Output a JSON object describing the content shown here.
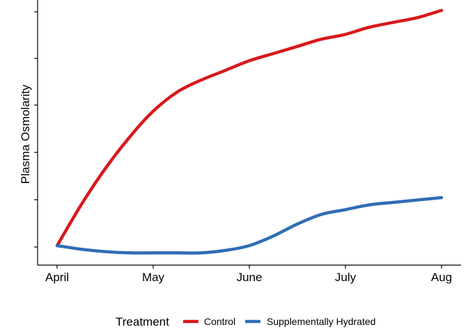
{
  "chart_data": {
    "type": "line",
    "title": "",
    "xlabel": "",
    "ylabel": "Plasma Osmolarity",
    "categories": [
      "April",
      "May",
      "June",
      "July",
      "Aug"
    ],
    "y_tick_count": 6,
    "y_tick_labels_shown": false,
    "ylim": [
      0,
      1.1
    ],
    "grid": false,
    "legend": {
      "title": "Treatment",
      "position": "bottom",
      "entries": [
        "Control",
        "Supplementally Hydrated"
      ]
    },
    "series": [
      {
        "name": "Control",
        "color": "#d7191c",
        "x": [
          0,
          0.25,
          0.5,
          0.75,
          1,
          1.25,
          1.5,
          1.75,
          2,
          2.25,
          2.5,
          2.75,
          3,
          3.25,
          3.5,
          3.75,
          4
        ],
        "values": [
          0.0,
          0.17,
          0.32,
          0.45,
          0.56,
          0.64,
          0.69,
          0.73,
          0.77,
          0.8,
          0.83,
          0.86,
          0.88,
          0.91,
          0.93,
          0.95,
          0.98
        ]
      },
      {
        "name": "Supplementally Hydrated",
        "color": "#2f6db5",
        "x": [
          0,
          0.25,
          0.5,
          0.75,
          1,
          1.25,
          1.5,
          1.75,
          2,
          2.25,
          2.5,
          2.75,
          3,
          3.25,
          3.5,
          3.75,
          4
        ],
        "values": [
          0.0,
          -0.015,
          -0.025,
          -0.03,
          -0.03,
          -0.03,
          -0.03,
          -0.02,
          0.0,
          0.04,
          0.09,
          0.13,
          0.15,
          0.17,
          0.18,
          0.19,
          0.2
        ]
      }
    ]
  }
}
